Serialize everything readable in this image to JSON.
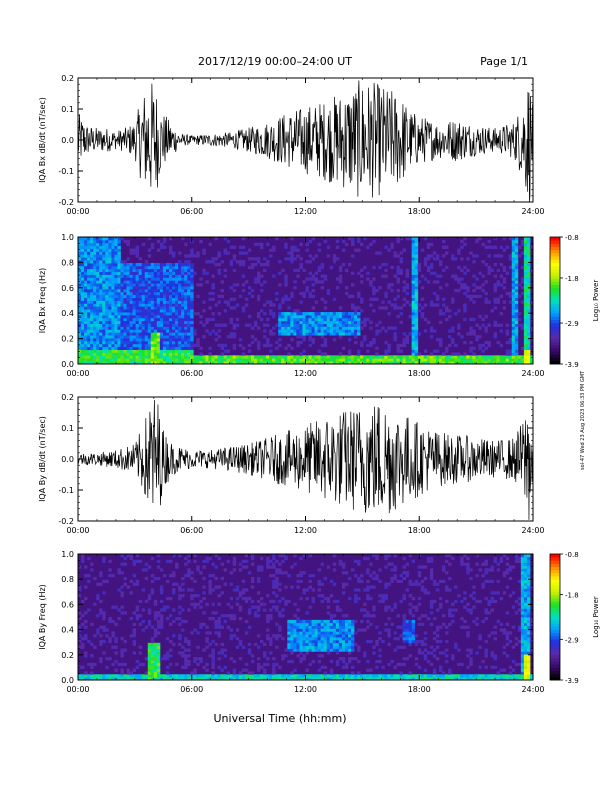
{
  "header": {
    "title": "2017/12/19  00:00–24:00 UT",
    "page_label": "Page 1/1"
  },
  "footer": {
    "xlabel": "Universal Time (hh:mm)",
    "side_stamp": "sol-47 Wed 23 Aug 2023 06:33 PM GMT"
  },
  "colorbar": {
    "label": "Log₁₀ Power",
    "ticks": [
      "-0.8",
      "-1.8",
      "-2.9",
      "-3.9"
    ],
    "tick_values": [
      -0.8,
      -1.8,
      -2.9,
      -3.9
    ],
    "range": [
      -3.9,
      -0.8
    ],
    "colors": [
      "#000000",
      "#3a0a6e",
      "#5a2aa8",
      "#2030e0",
      "#00a0ff",
      "#00e0c0",
      "#20e020",
      "#c8f000",
      "#ffff00",
      "#ff9000",
      "#ff0000"
    ]
  },
  "chart_data": [
    {
      "type": "line",
      "ylabel": "IQA Bx dB/dt (nT/sec)",
      "x_ticks": [
        "00:00",
        "06:00",
        "12:00",
        "18:00",
        "24:00"
      ],
      "xlim": [
        0,
        24
      ],
      "ylim": [
        -0.2,
        0.2
      ],
      "y_ticks": [
        "0.2",
        "0.1",
        "0.0",
        "-0.1",
        "-0.2"
      ],
      "y_tick_values": [
        0.2,
        0.1,
        0.0,
        -0.1,
        -0.2
      ],
      "series": [
        {
          "x_hours": [
            0,
            0.5,
            1,
            1.5,
            2,
            2.5,
            3,
            3.4,
            3.8,
            4.1,
            4.4,
            5,
            5.5,
            6,
            7,
            8,
            9,
            10,
            11,
            12,
            13,
            14,
            15,
            16,
            17,
            17.5,
            18,
            19,
            20,
            21,
            22,
            23,
            23.4,
            23.8,
            24
          ],
          "amplitude": [
            0.09,
            0.05,
            0.04,
            0.04,
            0.03,
            0.04,
            0.06,
            0.15,
            0.2,
            0.18,
            0.1,
            0.05,
            0.02,
            0.015,
            0.02,
            0.025,
            0.04,
            0.06,
            0.09,
            0.11,
            0.13,
            0.16,
            0.2,
            0.18,
            0.15,
            0.1,
            0.08,
            0.06,
            0.07,
            0.05,
            0.04,
            0.06,
            0.12,
            0.22,
            0.1
          ]
        }
      ]
    },
    {
      "type": "heatmap",
      "ylabel": "IQA Bx Freq (Hz)",
      "x_ticks": [
        "00:00",
        "06:00",
        "12:00",
        "18:00",
        "24:00"
      ],
      "xlim": [
        0,
        24
      ],
      "ylim": [
        0.0,
        1.0
      ],
      "y_ticks": [
        "1.0",
        "0.8",
        "0.6",
        "0.4",
        "0.2",
        "0.0"
      ],
      "y_tick_values": [
        1.0,
        0.8,
        0.6,
        0.4,
        0.2,
        0.0
      ],
      "zlim": [
        -3.9,
        -0.8
      ],
      "background_log_power": -3.5,
      "bands": [
        {
          "x0": 0.0,
          "x1": 2.2,
          "y0": 0.0,
          "y1": 1.0,
          "value": -2.7
        },
        {
          "x0": 2.2,
          "x1": 6.0,
          "y0": 0.0,
          "y1": 0.8,
          "value": -2.9
        },
        {
          "x0": 0.0,
          "x1": 6.0,
          "y0": 0.0,
          "y1": 0.12,
          "value": -2.1
        },
        {
          "x0": 3.9,
          "x1": 4.3,
          "y0": 0.0,
          "y1": 0.25,
          "value": -1.9
        },
        {
          "x0": 10.5,
          "x1": 14.8,
          "y0": 0.22,
          "y1": 0.42,
          "value": -2.7
        },
        {
          "x0": 17.6,
          "x1": 17.9,
          "y0": 0.0,
          "y1": 1.0,
          "value": -2.6
        },
        {
          "x0": 22.9,
          "x1": 23.2,
          "y0": 0.0,
          "y1": 1.0,
          "value": -2.6
        },
        {
          "x0": 23.5,
          "x1": 23.9,
          "y0": 0.0,
          "y1": 1.0,
          "value": -2.3
        },
        {
          "x0": 6.0,
          "x1": 24.0,
          "y0": 0.0,
          "y1": 0.06,
          "value": -2.0
        },
        {
          "x0": 23.5,
          "x1": 23.9,
          "y0": 0.0,
          "y1": 0.12,
          "value": -1.5
        }
      ]
    },
    {
      "type": "line",
      "ylabel": "IQA By dB/dt (nT/sec)",
      "x_ticks": [
        "00:00",
        "06:00",
        "12:00",
        "18:00",
        "24:00"
      ],
      "xlim": [
        0,
        24
      ],
      "ylim": [
        -0.2,
        0.2
      ],
      "y_ticks": [
        "0.2",
        "0.1",
        "0.0",
        "-0.1",
        "-0.2"
      ],
      "y_tick_values": [
        0.2,
        0.1,
        0.0,
        -0.1,
        -0.2
      ],
      "series": [
        {
          "x_hours": [
            0,
            1,
            2,
            3,
            3.5,
            3.9,
            4.2,
            4.5,
            5,
            6,
            7,
            8,
            9,
            10,
            11,
            12,
            13,
            14,
            15,
            16,
            17,
            18,
            19,
            20,
            21,
            22,
            23,
            23.4,
            23.8,
            24
          ],
          "amplitude": [
            0.02,
            0.02,
            0.03,
            0.05,
            0.12,
            0.22,
            0.2,
            0.1,
            0.05,
            0.03,
            0.03,
            0.04,
            0.05,
            0.07,
            0.09,
            0.11,
            0.14,
            0.16,
            0.18,
            0.2,
            0.16,
            0.12,
            0.09,
            0.08,
            0.07,
            0.06,
            0.07,
            0.12,
            0.22,
            0.1
          ]
        }
      ]
    },
    {
      "type": "heatmap",
      "ylabel": "IQA By Freq (Hz)",
      "x_ticks": [
        "00:00",
        "06:00",
        "12:00",
        "18:00",
        "24:00"
      ],
      "xlim": [
        0,
        24
      ],
      "ylim": [
        0.0,
        1.0
      ],
      "y_ticks": [
        "1.0",
        "0.8",
        "0.6",
        "0.4",
        "0.2",
        "0.0"
      ],
      "y_tick_values": [
        1.0,
        0.8,
        0.6,
        0.4,
        0.2,
        0.0
      ],
      "zlim": [
        -3.9,
        -0.8
      ],
      "background_log_power": -3.5,
      "bands": [
        {
          "x0": 0.0,
          "x1": 24.0,
          "y0": 0.0,
          "y1": 0.05,
          "value": -2.4
        },
        {
          "x0": 3.6,
          "x1": 4.3,
          "y0": 0.0,
          "y1": 0.3,
          "value": -2.1
        },
        {
          "x0": 11.0,
          "x1": 14.5,
          "y0": 0.22,
          "y1": 0.48,
          "value": -2.7
        },
        {
          "x0": 17.2,
          "x1": 17.8,
          "y0": 0.3,
          "y1": 0.48,
          "value": -2.9
        },
        {
          "x0": 23.4,
          "x1": 23.9,
          "y0": 0.0,
          "y1": 1.0,
          "value": -2.6
        },
        {
          "x0": 23.5,
          "x1": 23.9,
          "y0": 0.0,
          "y1": 0.2,
          "value": -1.6
        }
      ]
    }
  ]
}
